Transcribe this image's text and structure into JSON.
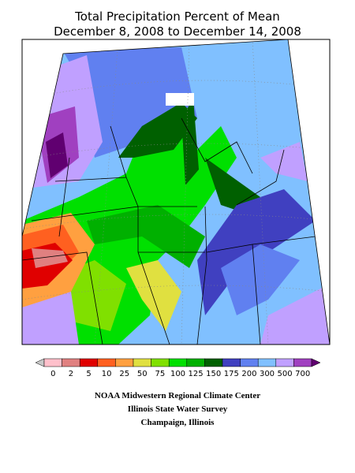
{
  "title": [
    "Total Precipitation Percent of Mean",
    "December 8, 2008 to December 14, 2008"
  ],
  "legend": {
    "labels": [
      0,
      2,
      5,
      10,
      25,
      50,
      75,
      100,
      125,
      150,
      175,
      200,
      300,
      500,
      700
    ],
    "colors": [
      "#ffc0cb",
      "#e08080",
      "#e00000",
      "#ff6020",
      "#ffa040",
      "#e0e040",
      "#80e000",
      "#00e000",
      "#00b000",
      "#006000",
      "#4040c0",
      "#6080f0",
      "#80c0ff",
      "#c0a0ff",
      "#a040c0"
    ],
    "low_color": "#c8c8c8",
    "high_color": "#600070"
  },
  "credits": [
    "NOAA Midwestern Regional Climate Center",
    "Illinois State Water Survey",
    "Champaign, Illinois"
  ]
}
